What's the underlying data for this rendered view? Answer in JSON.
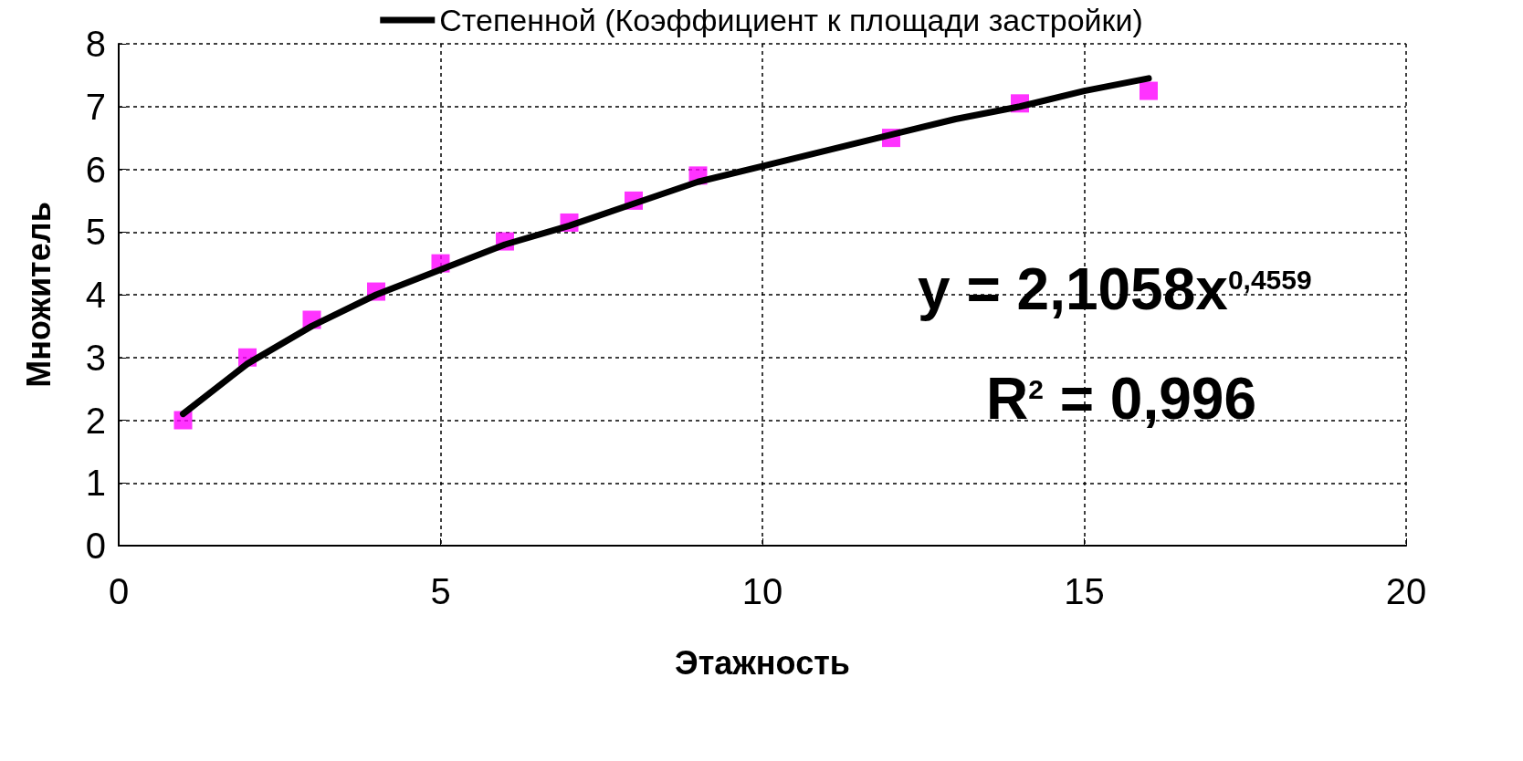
{
  "chart_data": {
    "type": "scatter",
    "xlabel": "Этажность",
    "ylabel": "Множитель",
    "series": [
      {
        "color": "#ff00ff",
        "marker": "square",
        "x": [
          1,
          2,
          3,
          4,
          5,
          6,
          7,
          8,
          9,
          12,
          14,
          16
        ],
        "values": [
          2.0,
          3.0,
          3.6,
          4.05,
          4.5,
          4.85,
          5.15,
          5.5,
          5.9,
          6.5,
          7.05,
          7.25
        ]
      },
      {
        "type": "line",
        "name": "Степенной (Коэффициент к площади застройки)",
        "color": "#000000",
        "marker": "none",
        "line_style": "solid",
        "x": [
          1,
          2,
          3,
          4,
          5,
          6,
          7,
          8,
          9,
          10,
          11,
          12,
          13,
          14,
          15,
          16
        ],
        "values": [
          2.1,
          2.9,
          3.5,
          4.0,
          4.4,
          4.8,
          5.1,
          5.45,
          5.8,
          6.05,
          6.3,
          6.55,
          6.8,
          7.0,
          7.25,
          7.45
        ]
      }
    ],
    "xlim": [
      0,
      20
    ],
    "xticks": [
      0,
      5,
      10,
      15,
      20
    ],
    "ylim": [
      0,
      8
    ],
    "yticks": [
      0,
      1,
      2,
      3,
      4,
      5,
      6,
      7,
      8
    ],
    "grid": true,
    "legend": "top",
    "annotations": [
      "y = 2,1058x$^{0,4559}$",
      "R$^{2}$ = 0,996"
    ]
  }
}
